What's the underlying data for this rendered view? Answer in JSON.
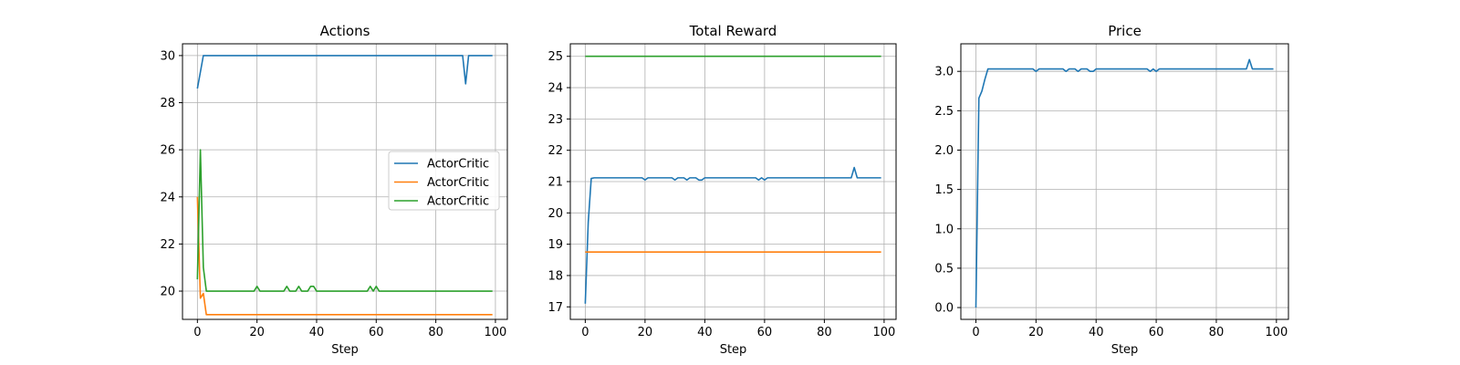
{
  "chart_data": [
    {
      "type": "line",
      "title": "Actions",
      "xlabel": "Step",
      "ylabel": "",
      "xlim": [
        -5,
        104
      ],
      "ylim": [
        18.8,
        30.5
      ],
      "xticks": [
        0,
        20,
        40,
        60,
        80,
        100
      ],
      "yticks": [
        20,
        22,
        24,
        26,
        28,
        30
      ],
      "grid": true,
      "legend": "center-right",
      "series": [
        {
          "name": "ActorCritic",
          "color": "#1f77b4",
          "points": [
            [
              0,
              28.6
            ],
            [
              1,
              29.3
            ],
            [
              2,
              30
            ],
            [
              3,
              30
            ],
            [
              89,
              30
            ],
            [
              90,
              28.8
            ],
            [
              91,
              30
            ],
            [
              99,
              30
            ]
          ]
        },
        {
          "name": "ActorCritic",
          "color": "#ff7f0e",
          "points": [
            [
              0,
              24
            ],
            [
              1,
              19.7
            ],
            [
              2,
              19.9
            ],
            [
              3,
              19
            ],
            [
              99,
              19
            ]
          ]
        },
        {
          "name": "ActorCritic",
          "color": "#2ca02c",
          "points": [
            [
              0,
              20.5
            ],
            [
              1,
              26
            ],
            [
              2,
              21
            ],
            [
              3,
              20
            ],
            [
              19,
              20
            ],
            [
              20,
              20.2
            ],
            [
              21,
              20
            ],
            [
              29,
              20
            ],
            [
              30,
              20.2
            ],
            [
              31,
              20
            ],
            [
              33,
              20
            ],
            [
              34,
              20.2
            ],
            [
              35,
              20
            ],
            [
              37,
              20
            ],
            [
              38,
              20.2
            ],
            [
              39,
              20.2
            ],
            [
              40,
              20
            ],
            [
              57,
              20
            ],
            [
              58,
              20.2
            ],
            [
              59,
              20
            ],
            [
              60,
              20.2
            ],
            [
              61,
              20
            ],
            [
              99,
              20
            ]
          ]
        }
      ]
    },
    {
      "type": "line",
      "title": "Total Reward",
      "xlabel": "Step",
      "ylabel": "",
      "xlim": [
        -5,
        104
      ],
      "ylim": [
        16.6,
        25.4
      ],
      "xticks": [
        0,
        20,
        40,
        60,
        80,
        100
      ],
      "yticks": [
        17,
        18,
        19,
        20,
        21,
        22,
        23,
        24,
        25
      ],
      "grid": true,
      "series": [
        {
          "color": "#1f77b4",
          "points": [
            [
              0,
              17.1
            ],
            [
              1,
              19.7
            ],
            [
              2,
              21.1
            ],
            [
              3,
              21.12
            ],
            [
              19,
              21.12
            ],
            [
              20,
              21.05
            ],
            [
              21,
              21.12
            ],
            [
              29,
              21.12
            ],
            [
              30,
              21.05
            ],
            [
              31,
              21.12
            ],
            [
              33,
              21.12
            ],
            [
              34,
              21.05
            ],
            [
              35,
              21.12
            ],
            [
              37,
              21.12
            ],
            [
              38,
              21.05
            ],
            [
              39,
              21.05
            ],
            [
              40,
              21.12
            ],
            [
              57,
              21.12
            ],
            [
              58,
              21.05
            ],
            [
              59,
              21.12
            ],
            [
              60,
              21.05
            ],
            [
              61,
              21.12
            ],
            [
              89,
              21.12
            ],
            [
              90,
              21.45
            ],
            [
              91,
              21.12
            ],
            [
              99,
              21.12
            ]
          ]
        },
        {
          "color": "#ff7f0e",
          "points": [
            [
              0,
              18.75
            ],
            [
              99,
              18.75
            ]
          ]
        },
        {
          "color": "#2ca02c",
          "points": [
            [
              0,
              25
            ],
            [
              99,
              25
            ]
          ]
        }
      ]
    },
    {
      "type": "line",
      "title": "Price",
      "xlabel": "Step",
      "ylabel": "",
      "xlim": [
        -5,
        104
      ],
      "ylim": [
        -0.15,
        3.35
      ],
      "xticks": [
        0,
        20,
        40,
        60,
        80,
        100
      ],
      "yticks": [
        "0.0",
        "0.5",
        "1.0",
        "1.5",
        "2.0",
        "2.5",
        "3.0"
      ],
      "grid": true,
      "series": [
        {
          "color": "#1f77b4",
          "points": [
            [
              0,
              0
            ],
            [
              1,
              2.66
            ],
            [
              2,
              2.75
            ],
            [
              3,
              2.9
            ],
            [
              4,
              3.03
            ],
            [
              19,
              3.03
            ],
            [
              20,
              3.0
            ],
            [
              21,
              3.03
            ],
            [
              29,
              3.03
            ],
            [
              30,
              3.0
            ],
            [
              31,
              3.03
            ],
            [
              33,
              3.03
            ],
            [
              34,
              3.0
            ],
            [
              35,
              3.03
            ],
            [
              37,
              3.03
            ],
            [
              38,
              3.0
            ],
            [
              39,
              3.0
            ],
            [
              40,
              3.03
            ],
            [
              57,
              3.03
            ],
            [
              58,
              3.0
            ],
            [
              59,
              3.03
            ],
            [
              60,
              3.0
            ],
            [
              61,
              3.03
            ],
            [
              90,
              3.03
            ],
            [
              91,
              3.15
            ],
            [
              92,
              3.03
            ],
            [
              99,
              3.03
            ]
          ]
        }
      ]
    }
  ]
}
